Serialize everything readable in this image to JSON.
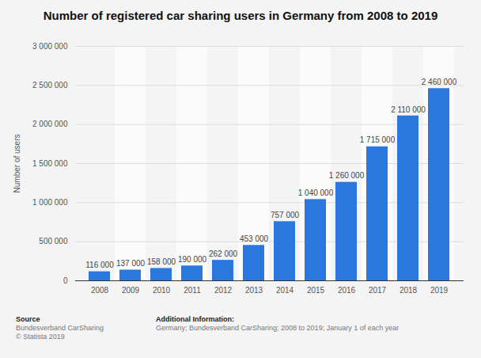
{
  "chart_data": {
    "type": "bar",
    "title": "Number of registered car sharing users in Germany from 2008 to 2019",
    "y_label": "Number of users",
    "categories": [
      "2008",
      "2009",
      "2010",
      "2011",
      "2012",
      "2013",
      "2014",
      "2015",
      "2016",
      "2017",
      "2018",
      "2019"
    ],
    "values": [
      116000,
      137000,
      158000,
      190000,
      262000,
      453000,
      757000,
      1040000,
      1260000,
      1715000,
      2110000,
      2460000
    ],
    "value_labels": [
      "116 000",
      "137 000",
      "158 000",
      "190 000",
      "262 000",
      "453 000",
      "757 000",
      "1 040 000",
      "1 260 000",
      "1 715 000",
      "2 110 000",
      "2 460 000"
    ],
    "data_labels": true,
    "color": "#2a77dd",
    "ylim": [
      0,
      3000000
    ],
    "yticks": [
      0,
      {
        "value": 500000,
        "label": "500 000"
      },
      {
        "value": 1000000,
        "label": "1 000 000"
      },
      {
        "value": 1500000,
        "label": "1 500 000"
      },
      {
        "value": 2000000,
        "label": "2 000 000"
      },
      {
        "value": 2500000,
        "label": "2 500 000"
      },
      {
        "value": 3000000,
        "label": "3 000 000"
      }
    ],
    "grid": true,
    "footer": {
      "source_title": "Source",
      "source": [
        "Bundesverband CarSharing",
        "© Statista 2019"
      ],
      "info_title": "Additional Information:",
      "info": "Germany; Bundesverband CarSharing; 2008 to 2019; January 1 of each year"
    }
  }
}
